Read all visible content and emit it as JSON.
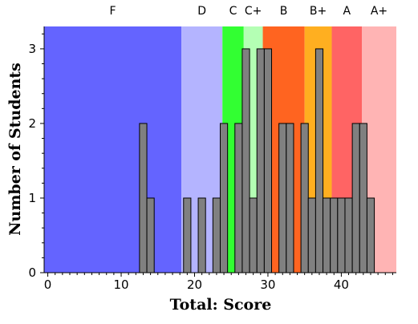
{
  "chart_data": {
    "type": "bar",
    "title": "",
    "xlabel": "Total: Score",
    "ylabel": "Number of Students",
    "xlim": [
      -0.5,
      47.5
    ],
    "ylim": [
      0,
      3.3
    ],
    "x_ticks": [
      0,
      10,
      20,
      30,
      40
    ],
    "y_ticks": [
      0,
      1,
      2,
      3
    ],
    "grade_bands": [
      {
        "grade": "F",
        "from": -0.5,
        "to": 18.2,
        "color": "#6464ff"
      },
      {
        "grade": "D",
        "from": 18.2,
        "to": 23.8,
        "color": "#b4b4ff"
      },
      {
        "grade": "C",
        "from": 23.8,
        "to": 26.7,
        "color": "#32ff32"
      },
      {
        "grade": "C+",
        "from": 26.7,
        "to": 29.3,
        "color": "#b4ffb4"
      },
      {
        "grade": "B",
        "from": 29.3,
        "to": 35.0,
        "color": "#ff6420"
      },
      {
        "grade": "B+",
        "from": 35.0,
        "to": 38.7,
        "color": "#ffaf20"
      },
      {
        "grade": "A",
        "from": 38.7,
        "to": 42.8,
        "color": "#ff6464"
      },
      {
        "grade": "A+",
        "from": 42.8,
        "to": 47.5,
        "color": "#ffb4b4"
      }
    ],
    "bars": [
      {
        "score": 13,
        "count": 2
      },
      {
        "score": 14,
        "count": 1
      },
      {
        "score": 19,
        "count": 1
      },
      {
        "score": 21,
        "count": 1
      },
      {
        "score": 23,
        "count": 1
      },
      {
        "score": 24,
        "count": 2
      },
      {
        "score": 26,
        "count": 2
      },
      {
        "score": 27,
        "count": 3
      },
      {
        "score": 28,
        "count": 1
      },
      {
        "score": 29,
        "count": 3
      },
      {
        "score": 30,
        "count": 3
      },
      {
        "score": 32,
        "count": 2
      },
      {
        "score": 33,
        "count": 2
      },
      {
        "score": 35,
        "count": 2
      },
      {
        "score": 36,
        "count": 1
      },
      {
        "score": 37,
        "count": 3
      },
      {
        "score": 38,
        "count": 1
      },
      {
        "score": 39,
        "count": 1
      },
      {
        "score": 40,
        "count": 1
      },
      {
        "score": 41,
        "count": 1
      },
      {
        "score": 42,
        "count": 2
      },
      {
        "score": 43,
        "count": 2
      },
      {
        "score": 44,
        "count": 1
      }
    ],
    "bar_color": "#808080",
    "grid": false,
    "legend": "none"
  }
}
